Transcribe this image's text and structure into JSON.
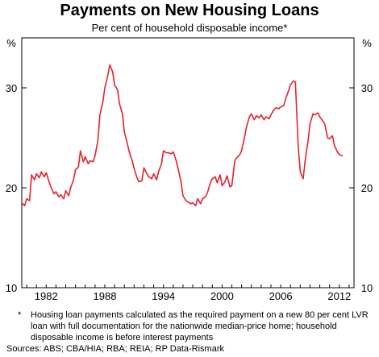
{
  "chart_data": {
    "type": "line",
    "title": "Payments on New Housing Loans",
    "subtitle": "Per cent of household disposable income*",
    "y_unit_left": "%",
    "y_unit_right": "%",
    "ylim": [
      10,
      35
    ],
    "yticks": [
      10,
      20,
      30
    ],
    "xlim": [
      1979.5,
      2013.5
    ],
    "xticks": [
      1982,
      1988,
      1994,
      2000,
      2006,
      2012
    ],
    "grid": false,
    "color": "#e8212a",
    "series": [
      {
        "x": [
          1979.5,
          1979.8,
          1980.0,
          1980.3,
          1980.5,
          1980.8,
          1981.0,
          1981.3,
          1981.5,
          1981.8,
          1982.0,
          1982.3,
          1982.5,
          1982.8,
          1983.0,
          1983.3,
          1983.5,
          1983.8,
          1984.0,
          1984.3,
          1984.5,
          1984.8,
          1985.0,
          1985.3,
          1985.5,
          1985.8,
          1986.0,
          1986.3,
          1986.5,
          1986.8,
          1987.0,
          1987.3,
          1987.5,
          1987.8,
          1988.0,
          1988.3,
          1988.5,
          1988.8,
          1989.0,
          1989.3,
          1989.5,
          1989.8,
          1990.0,
          1990.3,
          1990.5,
          1990.8,
          1991.0,
          1991.3,
          1991.5,
          1991.8,
          1992.0,
          1992.3,
          1992.5,
          1992.8,
          1993.0,
          1993.3,
          1993.5,
          1993.8,
          1994.0,
          1994.3,
          1994.5,
          1994.8,
          1995.0,
          1995.3,
          1995.5,
          1995.8,
          1996.0,
          1996.3,
          1996.5,
          1996.8,
          1997.0,
          1997.3,
          1997.5,
          1997.8,
          1998.0,
          1998.3,
          1998.5,
          1998.8,
          1999.0,
          1999.3,
          1999.5,
          1999.8,
          2000.0,
          2000.3,
          2000.5,
          2000.8,
          2001.0,
          2001.3,
          2001.5,
          2001.8,
          2002.0,
          2002.3,
          2002.5,
          2002.8,
          2003.0,
          2003.3,
          2003.5,
          2003.8,
          2004.0,
          2004.3,
          2004.5,
          2004.8,
          2005.0,
          2005.3,
          2005.5,
          2005.8,
          2006.0,
          2006.3,
          2006.5,
          2006.8,
          2007.0,
          2007.3,
          2007.5,
          2007.8,
          2008.0,
          2008.3,
          2008.5,
          2008.8,
          2009.0,
          2009.3,
          2009.5,
          2009.8,
          2010.0,
          2010.3,
          2010.5,
          2010.8,
          2011.0,
          2011.3,
          2011.5,
          2011.8,
          2012.0,
          2012.3
        ],
        "y": [
          18.5,
          18.2,
          18.9,
          18.7,
          21.3,
          20.8,
          21.4,
          21.0,
          21.6,
          21.1,
          21.5,
          20.6,
          20.0,
          19.4,
          19.6,
          19.1,
          19.3,
          18.9,
          19.7,
          19.2,
          20.0,
          20.8,
          21.8,
          22.1,
          23.7,
          22.6,
          23.1,
          22.4,
          22.7,
          22.6,
          23.2,
          24.8,
          27.3,
          28.6,
          30.0,
          31.2,
          32.3,
          31.6,
          30.3,
          29.8,
          28.4,
          27.4,
          25.6,
          24.4,
          23.6,
          22.7,
          21.9,
          21.0,
          20.6,
          20.7,
          22.0,
          21.4,
          21.1,
          20.9,
          21.4,
          20.8,
          21.6,
          22.4,
          23.7,
          23.5,
          23.5,
          23.4,
          23.6,
          22.7,
          21.9,
          20.6,
          19.2,
          18.7,
          18.6,
          18.4,
          18.5,
          18.2,
          18.9,
          18.4,
          18.9,
          19.1,
          19.5,
          20.5,
          20.9,
          21.1,
          20.5,
          21.3,
          20.2,
          20.6,
          21.2,
          20.1,
          20.2,
          22.7,
          23.0,
          23.3,
          23.7,
          25.1,
          26.1,
          27.1,
          27.4,
          26.8,
          27.2,
          27.0,
          27.3,
          26.8,
          27.1,
          26.9,
          27.3,
          27.8,
          28.0,
          27.9,
          28.1,
          28.2,
          28.9,
          29.7,
          30.3,
          30.7,
          30.6,
          24.0,
          21.6,
          20.9,
          22.7,
          24.7,
          26.4,
          27.4,
          27.3,
          27.5,
          27.1,
          26.7,
          26.4,
          25.0,
          24.9,
          25.2,
          24.2,
          23.6,
          23.3,
          23.2
        ]
      }
    ]
  },
  "notes": {
    "footnote_mark": "*",
    "footnote_text": "Housing loan payments calculated as the required payment on a new 80 per cent LVR loan with full documentation for the nationwide median-price home; household disposable income is before interest payments",
    "sources": "Sources: ABS; CBA/HIA; RBA; REIA; RP Data-Rismark"
  }
}
